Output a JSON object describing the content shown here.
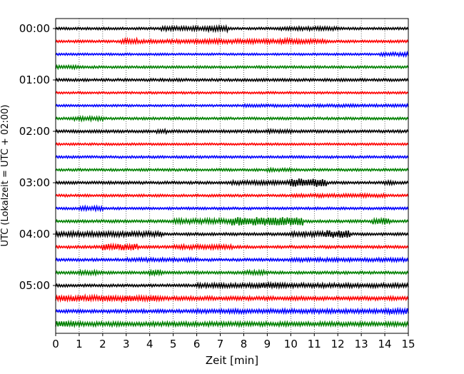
{
  "chart_data": {
    "type": "line",
    "xlabel": "Zeit  [min]",
    "ylabel": "UTC (Lokalzeit = UTC + 02:00)",
    "xlim": [
      0,
      15
    ],
    "x_ticks": [
      0,
      1,
      2,
      3,
      4,
      5,
      6,
      7,
      8,
      9,
      10,
      11,
      12,
      13,
      14,
      15
    ],
    "x_tick_labels": [
      "0",
      "1",
      "2",
      "3",
      "4",
      "5",
      "6",
      "7",
      "8",
      "9",
      "10",
      "11",
      "12",
      "13",
      "14",
      "15"
    ],
    "y_tick_labels": [
      {
        "label": "00:00",
        "trace_index": 0
      },
      {
        "label": "01:00",
        "trace_index": 4
      },
      {
        "label": "02:00",
        "trace_index": 8
      },
      {
        "label": "03:00",
        "trace_index": 12
      },
      {
        "label": "04:00",
        "trace_index": 16
      },
      {
        "label": "05:00",
        "trace_index": 20
      }
    ],
    "grid": "vertical dotted lines at each minute",
    "colors": [
      "#000000",
      "#ff0000",
      "#0000ff",
      "#008000"
    ],
    "traces": [
      {
        "start": "00:00",
        "color": "#000000",
        "noise": 1.6,
        "bursts": [
          [
            4.5,
            7.3,
            3.0
          ],
          [
            6.5,
            7.3,
            4.0
          ],
          [
            9.5,
            12.0,
            2.6
          ]
        ]
      },
      {
        "start": "00:15",
        "color": "#ff0000",
        "noise": 1.6,
        "bursts": [
          [
            2.8,
            3.5,
            4.0
          ],
          [
            3.6,
            6.0,
            2.6
          ],
          [
            6.0,
            11.5,
            3.0
          ],
          [
            9.5,
            10.3,
            4.0
          ]
        ]
      },
      {
        "start": "00:30",
        "color": "#0000ff",
        "noise": 1.4,
        "bursts": [
          [
            13.8,
            15.0,
            2.6
          ]
        ]
      },
      {
        "start": "00:45",
        "color": "#008000",
        "noise": 1.6,
        "bursts": [
          [
            0.0,
            1.0,
            2.4
          ]
        ]
      },
      {
        "start": "01:00",
        "color": "#000000",
        "noise": 1.8,
        "bursts": []
      },
      {
        "start": "01:15",
        "color": "#ff0000",
        "noise": 1.4,
        "bursts": []
      },
      {
        "start": "01:30",
        "color": "#0000ff",
        "noise": 1.4,
        "bursts": [
          [
            8.0,
            15.0,
            2.0
          ]
        ]
      },
      {
        "start": "01:45",
        "color": "#008000",
        "noise": 1.6,
        "bursts": [
          [
            0.8,
            2.0,
            3.0
          ]
        ]
      },
      {
        "start": "02:00",
        "color": "#000000",
        "noise": 1.8,
        "bursts": [
          [
            4.3,
            4.7,
            3.0
          ],
          [
            9.0,
            10.0,
            2.6
          ]
        ]
      },
      {
        "start": "02:15",
        "color": "#ff0000",
        "noise": 1.4,
        "bursts": []
      },
      {
        "start": "02:30",
        "color": "#0000ff",
        "noise": 1.6,
        "bursts": []
      },
      {
        "start": "02:45",
        "color": "#008000",
        "noise": 1.6,
        "bursts": [
          [
            9.0,
            10.0,
            2.4
          ]
        ]
      },
      {
        "start": "03:00",
        "color": "#000000",
        "noise": 1.8,
        "bursts": [
          [
            7.5,
            11.5,
            3.0
          ],
          [
            10.0,
            11.5,
            6.0
          ],
          [
            14.0,
            14.5,
            2.6
          ]
        ]
      },
      {
        "start": "03:15",
        "color": "#ff0000",
        "noise": 1.6,
        "bursts": [
          [
            10.0,
            14.0,
            2.4
          ]
        ]
      },
      {
        "start": "03:30",
        "color": "#0000ff",
        "noise": 1.6,
        "bursts": [
          [
            1.0,
            2.0,
            3.0
          ]
        ]
      },
      {
        "start": "03:45",
        "color": "#008000",
        "noise": 1.8,
        "bursts": [
          [
            5.0,
            10.5,
            3.5
          ],
          [
            7.5,
            10.5,
            6.0
          ],
          [
            13.5,
            14.2,
            4.5
          ]
        ]
      },
      {
        "start": "04:00",
        "color": "#000000",
        "noise": 1.8,
        "bursts": [
          [
            0.0,
            4.5,
            3.5
          ],
          [
            10.0,
            12.5,
            3.5
          ],
          [
            11.5,
            12.5,
            5.5
          ]
        ]
      },
      {
        "start": "04:15",
        "color": "#ff0000",
        "noise": 1.8,
        "bursts": [
          [
            2.0,
            3.5,
            4.5
          ],
          [
            5.0,
            7.5,
            3.0
          ]
        ]
      },
      {
        "start": "04:30",
        "color": "#0000ff",
        "noise": 1.8,
        "bursts": [
          [
            3.0,
            6.0,
            2.6
          ],
          [
            10.0,
            15.0,
            2.6
          ]
        ]
      },
      {
        "start": "04:45",
        "color": "#008000",
        "noise": 1.8,
        "bursts": [
          [
            1.0,
            2.0,
            3.0
          ],
          [
            4.0,
            4.5,
            4.0
          ],
          [
            8.0,
            9.0,
            3.0
          ]
        ]
      },
      {
        "start": "05:00",
        "color": "#000000",
        "noise": 1.8,
        "bursts": [
          [
            6.0,
            15.0,
            3.0
          ],
          [
            8.5,
            9.5,
            4.0
          ]
        ]
      },
      {
        "start": "05:15",
        "color": "#ff0000",
        "noise": 2.2,
        "bursts": [
          [
            0.0,
            4.5,
            4.0
          ],
          [
            4.5,
            15.0,
            2.6
          ]
        ]
      },
      {
        "start": "05:30",
        "color": "#0000ff",
        "noise": 2.2,
        "bursts": [
          [
            6.0,
            15.0,
            3.0
          ],
          [
            14.0,
            15.0,
            4.0
          ]
        ]
      },
      {
        "start": "05:45",
        "color": "#008000",
        "noise": 2.4,
        "bursts": [
          [
            0.0,
            0.8,
            4.0
          ],
          [
            0.8,
            15.0,
            3.0
          ]
        ]
      }
    ]
  }
}
